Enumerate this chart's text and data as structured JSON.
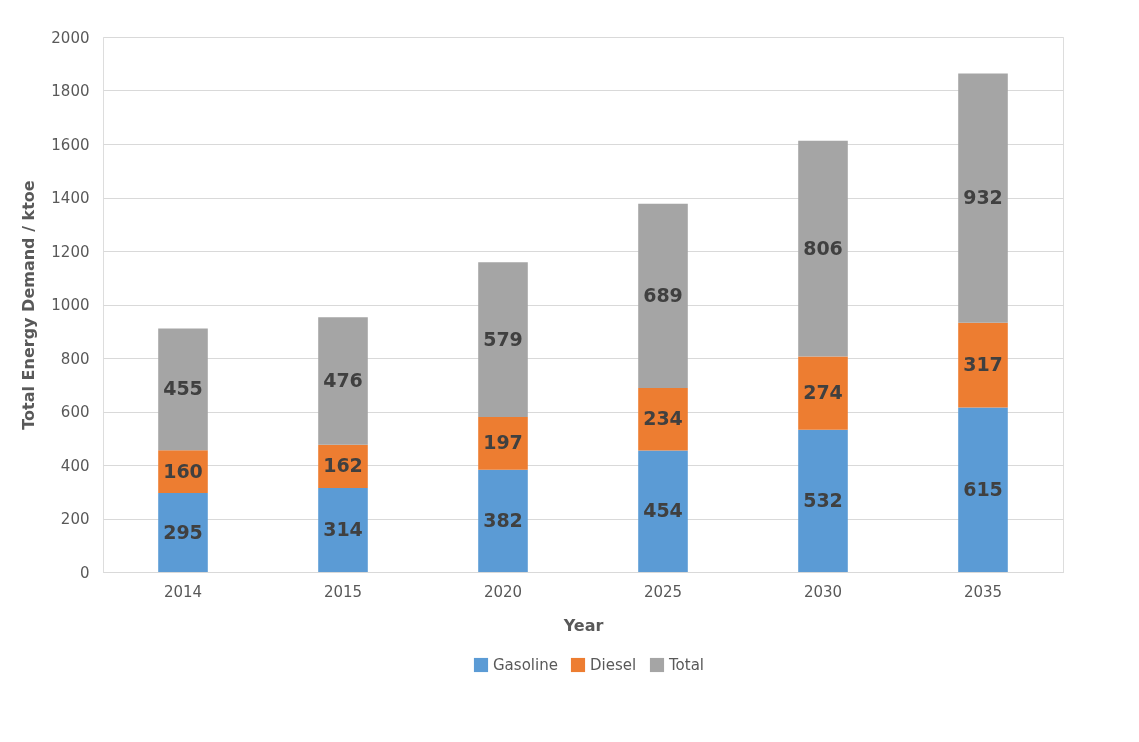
{
  "chart_data": {
    "type": "bar",
    "stacked": true,
    "xlabel": "Year",
    "ylabel": "Total Energy Demand / ktoe",
    "categories": [
      "2014",
      "2015",
      "2020",
      "2025",
      "2030",
      "2035"
    ],
    "series": [
      {
        "name": "Gasoline",
        "color": "#5b9bd5",
        "values": [
          295,
          314,
          382,
          454,
          532,
          615
        ]
      },
      {
        "name": "Diesel",
        "color": "#ed7d31",
        "values": [
          160,
          162,
          197,
          234,
          274,
          317
        ]
      },
      {
        "name": "Total",
        "color": "#a5a5a5",
        "values": [
          455,
          476,
          579,
          689,
          806,
          932
        ]
      }
    ],
    "ylim": [
      0,
      2000
    ],
    "yticks": [
      0,
      200,
      400,
      600,
      800,
      1000,
      1200,
      1400,
      1600,
      1800,
      2000
    ],
    "grid": "y",
    "legend": "bottom",
    "data_labels": true
  }
}
